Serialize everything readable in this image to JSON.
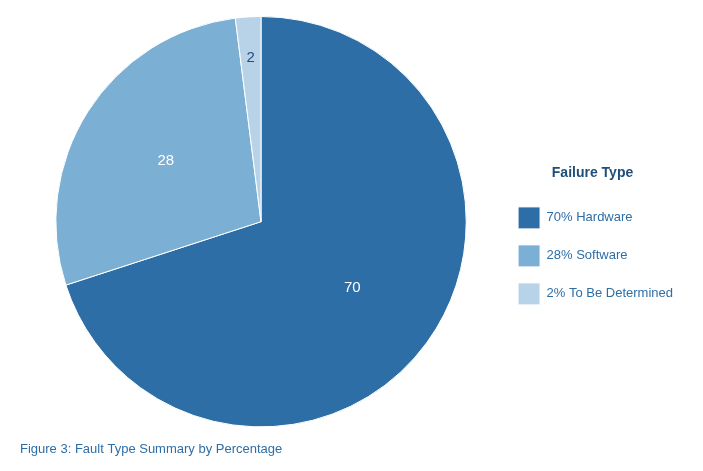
{
  "chart_data": {
    "type": "pie",
    "title": "Figure 3: Fault Type Summary by Percentage",
    "legend_title": "Failure Type",
    "categories": [
      "70% Hardware",
      "28% Software",
      "2% To Be Determined"
    ],
    "values": [
      70,
      28,
      2
    ],
    "colors": [
      "#2E6EA6",
      "#7BAFD4",
      "#B8D3E8"
    ],
    "data_labels": true,
    "legend": "right"
  }
}
